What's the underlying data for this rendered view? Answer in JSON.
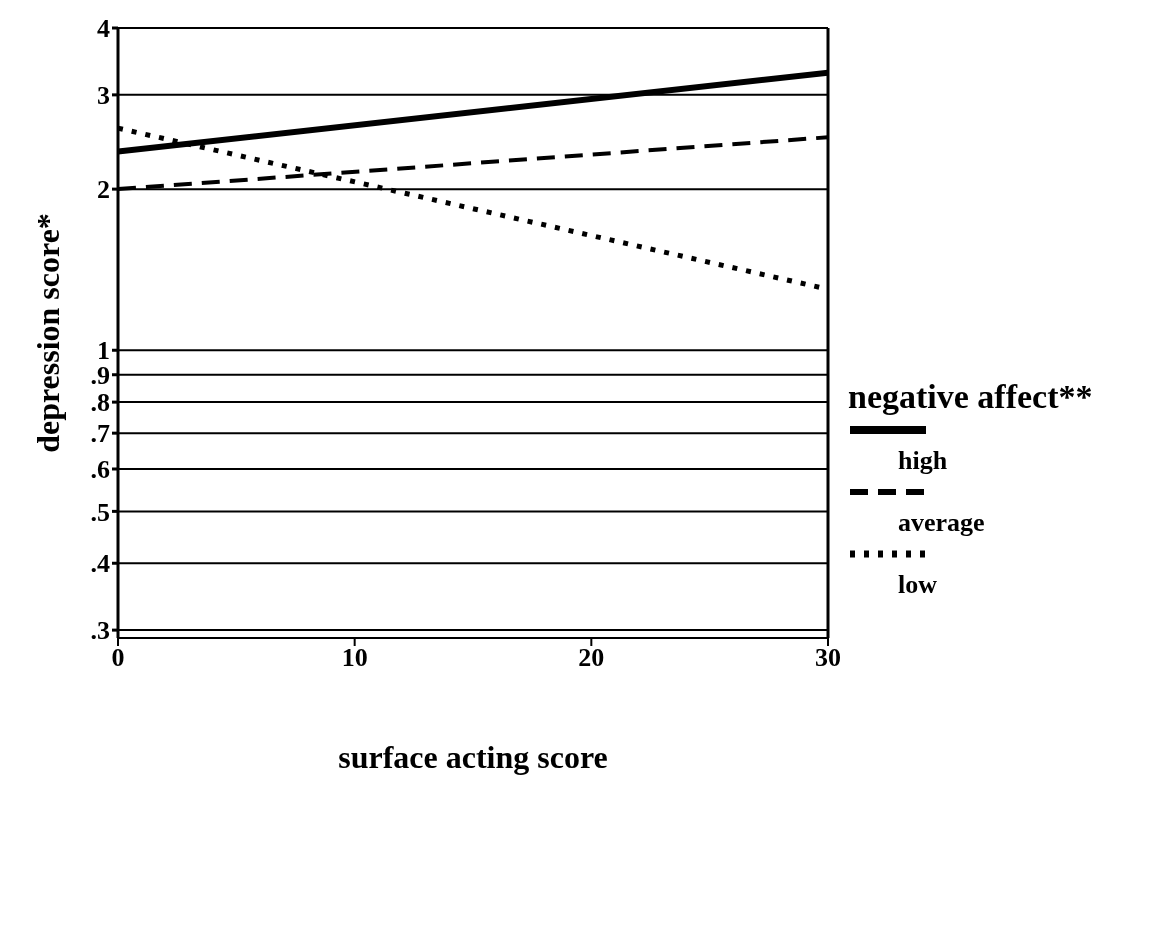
{
  "chart_data": {
    "type": "line",
    "xlabel": "surface acting score",
    "ylabel": "depression score*",
    "legend_title": "negative affect**",
    "x": [
      0,
      30
    ],
    "series": [
      {
        "name": "high",
        "color": "#000000",
        "line_style": "solid",
        "values": [
          2.35,
          3.3
        ]
      },
      {
        "name": "average",
        "color": "#000000",
        "line_style": "dashed",
        "values": [
          2.0,
          2.5
        ]
      },
      {
        "name": "low",
        "color": "#000000",
        "line_style": "dotted",
        "values": [
          2.6,
          1.3
        ]
      }
    ],
    "log": "y",
    "xlim": [
      0,
      30
    ],
    "xticks": [
      0,
      10,
      20,
      30
    ],
    "ylim": [
      0.29,
      4
    ],
    "yticks": [
      {
        "value": 0.3,
        "label": ".3"
      },
      {
        "value": 0.4,
        "label": ".4"
      },
      {
        "value": 0.5,
        "label": ".5"
      },
      {
        "value": 0.6,
        "label": ".6"
      },
      {
        "value": 0.7,
        "label": ".7"
      },
      {
        "value": 0.8,
        "label": ".8"
      },
      {
        "value": 0.9,
        "label": ".9"
      },
      1,
      2,
      3,
      4
    ],
    "grid": "y",
    "legend": "right",
    "marker": "none"
  }
}
